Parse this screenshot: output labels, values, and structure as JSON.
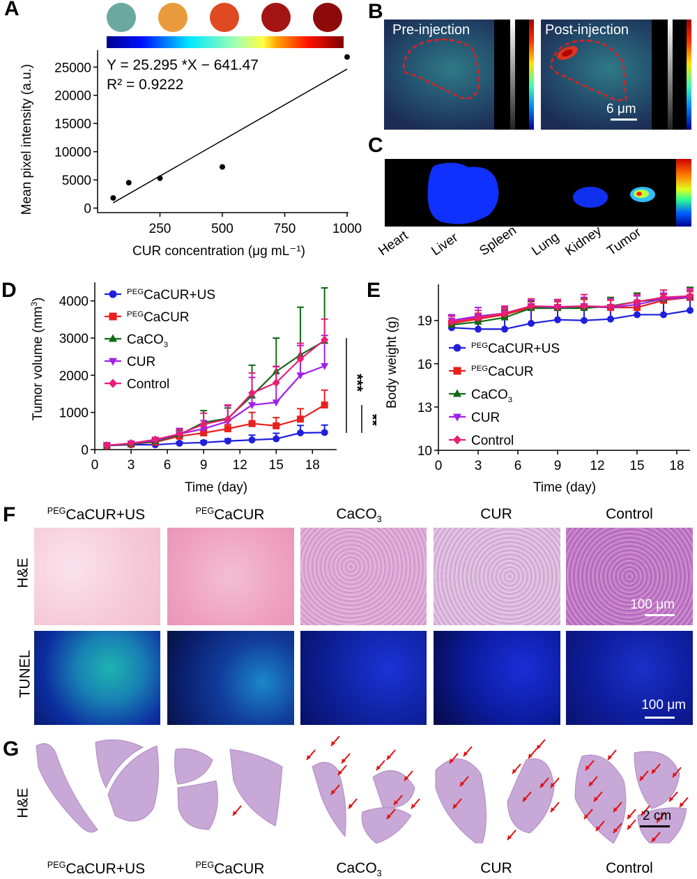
{
  "figure": {
    "panels": {
      "A": "A",
      "B": "B",
      "C": "C",
      "D": "D",
      "E": "E",
      "F": "F",
      "G": "G"
    }
  },
  "panelB": {
    "pre_label": "Pre-injection",
    "post_label": "Post-injection",
    "scale_bar": "6 μm"
  },
  "panelC": {
    "organs": [
      "Heart",
      "Liver",
      "Spleen",
      "Lung",
      "Kidney",
      "Tumor"
    ]
  },
  "groups": {
    "g1_sup": "PEG",
    "g1_main": "CaCUR+US",
    "g2_sup": "PEG",
    "g2_main": "CaCUR",
    "g3_main": "CaCO",
    "g3_sub": "3",
    "g4_main": "CUR",
    "g5_main": "Control"
  },
  "panelF": {
    "row_he": "H&E",
    "row_tunel": "TUNEL",
    "scale_he": "100 μm",
    "scale_tunel": "100 μm"
  },
  "panelG": {
    "row_he": "H&E",
    "scale": "2 cm",
    "arrow_counts": [
      0,
      1,
      12,
      12,
      18
    ]
  },
  "chart_data": [
    {
      "id": "A",
      "type": "scatter",
      "title": "",
      "xlabel": "CUR concentration (μg mL⁻¹)",
      "ylabel": "Mean pixel intensity (a.u.)",
      "xlim": [
        0,
        1000
      ],
      "ylim": [
        -800,
        28000
      ],
      "xticks": [
        250,
        500,
        750,
        1000
      ],
      "yticks": [
        0,
        5000,
        10000,
        15000,
        20000,
        25000
      ],
      "points": [
        {
          "x": 62.5,
          "y": 1800
        },
        {
          "x": 125,
          "y": 4500
        },
        {
          "x": 250,
          "y": 5300
        },
        {
          "x": 500,
          "y": 7300
        },
        {
          "x": 1000,
          "y": 26800
        }
      ],
      "fit": {
        "slope": 25.295,
        "intercept": -641.47,
        "x_range": [
          62.5,
          1000
        ]
      },
      "annotations": [
        "Y = 25.295 *X − 641.47",
        "R² = 0.9222"
      ],
      "colorbar": "jet",
      "sample_wells": [
        "#6aa8a0",
        "#e89a3c",
        "#e04a22",
        "#a41414",
        "#8e0a0a"
      ]
    },
    {
      "id": "D",
      "type": "line",
      "xlabel": "Time (day)",
      "ylabel": "Tumor volume (mm³)",
      "xlim": [
        0,
        20
      ],
      "ylim": [
        0,
        4500
      ],
      "xticks": [
        0,
        3,
        6,
        9,
        12,
        15,
        18
      ],
      "yticks": [
        0,
        1000,
        2000,
        3000,
        4000
      ],
      "x": [
        1,
        3,
        5,
        7,
        9,
        11,
        13,
        15,
        17,
        19
      ],
      "legend_position": "top-left",
      "significance": [
        "***",
        "**"
      ],
      "series": [
        {
          "name": "PEGCaCUR+US",
          "color": "#1f1fdc",
          "marker": "circle",
          "values": [
            110,
            130,
            130,
            170,
            190,
            230,
            260,
            290,
            450,
            460
          ],
          "err": [
            30,
            30,
            30,
            40,
            50,
            60,
            130,
            150,
            200,
            200
          ]
        },
        {
          "name": "PEGCaCUR",
          "color": "#e8201e",
          "marker": "square",
          "values": [
            110,
            150,
            200,
            360,
            450,
            560,
            700,
            640,
            820,
            1200
          ],
          "err": [
            30,
            40,
            50,
            80,
            100,
            120,
            300,
            220,
            280,
            400
          ]
        },
        {
          "name": "CaCO3",
          "color": "#0e6a12",
          "marker": "triangle-up",
          "values": [
            110,
            150,
            220,
            400,
            730,
            840,
            1450,
            2100,
            2550,
            2920
          ],
          "err": [
            30,
            40,
            60,
            120,
            320,
            280,
            820,
            900,
            1280,
            1430
          ]
        },
        {
          "name": "CUR",
          "color": "#a020e8",
          "marker": "triangle-down",
          "values": [
            110,
            170,
            240,
            420,
            560,
            760,
            1200,
            1270,
            2000,
            2250
          ],
          "err": [
            30,
            40,
            60,
            150,
            220,
            420,
            740,
            960,
            800,
            820
          ]
        },
        {
          "name": "Control",
          "color": "#e81e78",
          "marker": "diamond",
          "values": [
            110,
            170,
            270,
            420,
            680,
            820,
            1520,
            1800,
            2440,
            2950
          ],
          "err": [
            30,
            40,
            60,
            120,
            300,
            380,
            540,
            440,
            420,
            560
          ]
        }
      ]
    },
    {
      "id": "E",
      "type": "line",
      "xlabel": "Time (day)",
      "ylabel": "Body weight (g)",
      "xlim": [
        0,
        19
      ],
      "ylim": [
        10,
        21.5
      ],
      "xticks": [
        0,
        3,
        6,
        9,
        12,
        15,
        18
      ],
      "yticks": [
        10,
        13,
        16,
        19
      ],
      "x": [
        1,
        3,
        5,
        7,
        9,
        11,
        13,
        15,
        17,
        19
      ],
      "legend_position": "center-left",
      "series": [
        {
          "name": "PEGCaCUR+US",
          "color": "#1f1fdc",
          "marker": "circle",
          "values": [
            18.5,
            18.4,
            18.4,
            18.8,
            19.05,
            19.0,
            19.1,
            19.4,
            19.4,
            19.7
          ],
          "err": [
            0.9,
            0.7,
            0.7,
            1.1,
            0.9,
            0.9,
            0.8,
            0.8,
            1.1,
            0.9
          ]
        },
        {
          "name": "PEGCaCUR",
          "color": "#e8201e",
          "marker": "square",
          "values": [
            18.8,
            19.1,
            19.4,
            19.9,
            19.9,
            19.95,
            19.9,
            19.9,
            20.4,
            20.6
          ],
          "err": [
            0.5,
            0.4,
            0.4,
            0.4,
            0.4,
            0.5,
            0.5,
            0.5,
            0.4,
            0.4
          ]
        },
        {
          "name": "CaCO3",
          "color": "#0e6a12",
          "marker": "triangle-up",
          "values": [
            18.7,
            18.9,
            19.2,
            19.85,
            19.85,
            19.85,
            20.0,
            20.3,
            20.5,
            20.7
          ],
          "err": [
            0.6,
            0.5,
            0.5,
            0.5,
            0.6,
            0.7,
            0.6,
            0.6,
            0.6,
            0.6
          ]
        },
        {
          "name": "CUR",
          "color": "#a020e8",
          "marker": "triangle-down",
          "values": [
            19.0,
            19.3,
            19.5,
            20.0,
            19.9,
            20.0,
            19.9,
            20.1,
            20.5,
            20.6
          ],
          "err": [
            0.4,
            0.6,
            0.4,
            0.4,
            0.5,
            0.6,
            0.6,
            0.6,
            0.4,
            0.5
          ]
        },
        {
          "name": "Control",
          "color": "#e81e78",
          "marker": "diamond",
          "values": [
            18.9,
            19.2,
            19.5,
            20.0,
            19.95,
            20.0,
            19.95,
            20.3,
            20.6,
            20.7
          ],
          "err": [
            0.4,
            0.5,
            0.5,
            0.5,
            0.5,
            0.8,
            0.5,
            0.5,
            0.5,
            0.5
          ]
        }
      ]
    }
  ]
}
